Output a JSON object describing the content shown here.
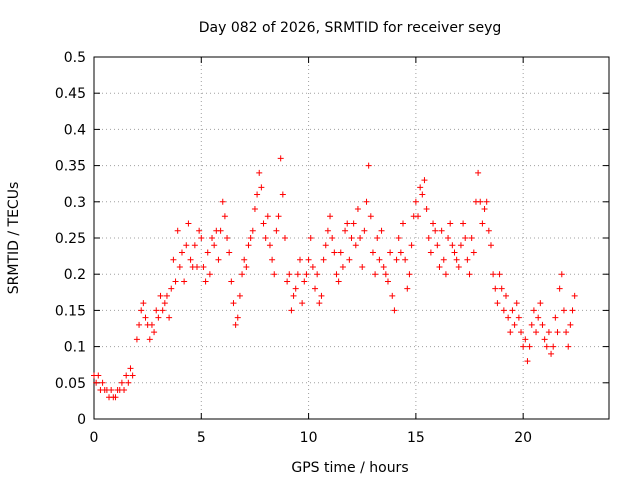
{
  "chart_data": {
    "type": "scatter",
    "title": "Day 082 of 2026, SRMTID for receiver seyg",
    "xlabel": "GPS time / hours",
    "ylabel": "SRMTID / TECUs",
    "xlim": [
      0,
      24
    ],
    "ylim": [
      0,
      0.5
    ],
    "xticks": [
      0,
      5,
      10,
      15,
      20
    ],
    "xtick_labels": [
      "0",
      "5",
      "10",
      "15",
      "20"
    ],
    "yticks": [
      0,
      0.05,
      0.1,
      0.15,
      0.2,
      0.25,
      0.3,
      0.35,
      0.4,
      0.45,
      0.5
    ],
    "ytick_labels": [
      "0",
      "0.05",
      "0.1",
      "0.15",
      "0.2",
      "0.25",
      "0.3",
      "0.35",
      "0.4",
      "0.45",
      "0.5"
    ],
    "grid": true,
    "marker": "+",
    "marker_color": "#ff0000",
    "series": [
      {
        "name": "SRMTID",
        "points": [
          [
            0.0,
            0.06
          ],
          [
            0.1,
            0.05
          ],
          [
            0.2,
            0.06
          ],
          [
            0.3,
            0.04
          ],
          [
            0.4,
            0.05
          ],
          [
            0.5,
            0.04
          ],
          [
            0.6,
            0.04
          ],
          [
            0.7,
            0.03
          ],
          [
            0.8,
            0.04
          ],
          [
            0.9,
            0.03
          ],
          [
            1.0,
            0.03
          ],
          [
            1.1,
            0.04
          ],
          [
            1.2,
            0.04
          ],
          [
            1.3,
            0.05
          ],
          [
            1.4,
            0.04
          ],
          [
            1.5,
            0.06
          ],
          [
            1.6,
            0.05
          ],
          [
            1.7,
            0.07
          ],
          [
            1.8,
            0.06
          ],
          [
            2.0,
            0.11
          ],
          [
            2.1,
            0.13
          ],
          [
            2.2,
            0.15
          ],
          [
            2.3,
            0.16
          ],
          [
            2.4,
            0.14
          ],
          [
            2.5,
            0.13
          ],
          [
            2.6,
            0.11
          ],
          [
            2.7,
            0.13
          ],
          [
            2.8,
            0.12
          ],
          [
            2.9,
            0.15
          ],
          [
            3.0,
            0.14
          ],
          [
            3.1,
            0.17
          ],
          [
            3.2,
            0.15
          ],
          [
            3.3,
            0.16
          ],
          [
            3.4,
            0.17
          ],
          [
            3.5,
            0.14
          ],
          [
            3.6,
            0.18
          ],
          [
            3.7,
            0.22
          ],
          [
            3.8,
            0.19
          ],
          [
            3.9,
            0.26
          ],
          [
            4.0,
            0.21
          ],
          [
            4.1,
            0.23
          ],
          [
            4.2,
            0.19
          ],
          [
            4.3,
            0.24
          ],
          [
            4.4,
            0.27
          ],
          [
            4.5,
            0.22
          ],
          [
            4.6,
            0.21
          ],
          [
            4.7,
            0.24
          ],
          [
            4.8,
            0.21
          ],
          [
            4.9,
            0.26
          ],
          [
            5.0,
            0.25
          ],
          [
            5.1,
            0.21
          ],
          [
            5.2,
            0.19
          ],
          [
            5.3,
            0.23
          ],
          [
            5.4,
            0.2
          ],
          [
            5.5,
            0.25
          ],
          [
            5.6,
            0.24
          ],
          [
            5.7,
            0.26
          ],
          [
            5.8,
            0.22
          ],
          [
            5.9,
            0.26
          ],
          [
            6.0,
            0.3
          ],
          [
            6.1,
            0.28
          ],
          [
            6.2,
            0.25
          ],
          [
            6.3,
            0.23
          ],
          [
            6.4,
            0.19
          ],
          [
            6.5,
            0.16
          ],
          [
            6.6,
            0.13
          ],
          [
            6.7,
            0.14
          ],
          [
            6.8,
            0.17
          ],
          [
            6.9,
            0.2
          ],
          [
            7.0,
            0.22
          ],
          [
            7.1,
            0.21
          ],
          [
            7.2,
            0.24
          ],
          [
            7.3,
            0.25
          ],
          [
            7.4,
            0.26
          ],
          [
            7.5,
            0.29
          ],
          [
            7.6,
            0.31
          ],
          [
            7.7,
            0.34
          ],
          [
            7.8,
            0.32
          ],
          [
            7.9,
            0.27
          ],
          [
            8.0,
            0.25
          ],
          [
            8.1,
            0.28
          ],
          [
            8.2,
            0.24
          ],
          [
            8.3,
            0.22
          ],
          [
            8.4,
            0.2
          ],
          [
            8.5,
            0.26
          ],
          [
            8.6,
            0.28
          ],
          [
            8.7,
            0.36
          ],
          [
            8.8,
            0.31
          ],
          [
            8.9,
            0.25
          ],
          [
            9.0,
            0.19
          ],
          [
            9.1,
            0.2
          ],
          [
            9.2,
            0.15
          ],
          [
            9.3,
            0.17
          ],
          [
            9.4,
            0.18
          ],
          [
            9.5,
            0.2
          ],
          [
            9.6,
            0.22
          ],
          [
            9.7,
            0.16
          ],
          [
            9.8,
            0.19
          ],
          [
            9.9,
            0.2
          ],
          [
            10.0,
            0.22
          ],
          [
            10.1,
            0.25
          ],
          [
            10.2,
            0.21
          ],
          [
            10.3,
            0.18
          ],
          [
            10.4,
            0.2
          ],
          [
            10.5,
            0.16
          ],
          [
            10.6,
            0.17
          ],
          [
            10.7,
            0.22
          ],
          [
            10.8,
            0.24
          ],
          [
            10.9,
            0.26
          ],
          [
            11.0,
            0.28
          ],
          [
            11.1,
            0.25
          ],
          [
            11.2,
            0.23
          ],
          [
            11.3,
            0.2
          ],
          [
            11.4,
            0.19
          ],
          [
            11.5,
            0.23
          ],
          [
            11.6,
            0.21
          ],
          [
            11.7,
            0.26
          ],
          [
            11.8,
            0.27
          ],
          [
            11.9,
            0.22
          ],
          [
            12.0,
            0.25
          ],
          [
            12.1,
            0.27
          ],
          [
            12.2,
            0.24
          ],
          [
            12.3,
            0.29
          ],
          [
            12.4,
            0.25
          ],
          [
            12.5,
            0.21
          ],
          [
            12.6,
            0.26
          ],
          [
            12.7,
            0.3
          ],
          [
            12.8,
            0.35
          ],
          [
            12.9,
            0.28
          ],
          [
            13.0,
            0.23
          ],
          [
            13.1,
            0.2
          ],
          [
            13.2,
            0.25
          ],
          [
            13.3,
            0.22
          ],
          [
            13.4,
            0.26
          ],
          [
            13.5,
            0.21
          ],
          [
            13.6,
            0.2
          ],
          [
            13.7,
            0.19
          ],
          [
            13.8,
            0.23
          ],
          [
            13.9,
            0.17
          ],
          [
            14.0,
            0.15
          ],
          [
            14.1,
            0.22
          ],
          [
            14.2,
            0.25
          ],
          [
            14.3,
            0.23
          ],
          [
            14.4,
            0.27
          ],
          [
            14.5,
            0.22
          ],
          [
            14.6,
            0.18
          ],
          [
            14.7,
            0.2
          ],
          [
            14.8,
            0.24
          ],
          [
            14.9,
            0.28
          ],
          [
            15.0,
            0.3
          ],
          [
            15.1,
            0.28
          ],
          [
            15.2,
            0.32
          ],
          [
            15.3,
            0.31
          ],
          [
            15.4,
            0.33
          ],
          [
            15.5,
            0.29
          ],
          [
            15.6,
            0.25
          ],
          [
            15.7,
            0.23
          ],
          [
            15.8,
            0.27
          ],
          [
            15.9,
            0.26
          ],
          [
            16.0,
            0.24
          ],
          [
            16.1,
            0.21
          ],
          [
            16.2,
            0.26
          ],
          [
            16.3,
            0.22
          ],
          [
            16.4,
            0.2
          ],
          [
            16.5,
            0.25
          ],
          [
            16.6,
            0.27
          ],
          [
            16.7,
            0.24
          ],
          [
            16.8,
            0.23
          ],
          [
            16.9,
            0.22
          ],
          [
            17.0,
            0.21
          ],
          [
            17.1,
            0.24
          ],
          [
            17.2,
            0.27
          ],
          [
            17.3,
            0.25
          ],
          [
            17.4,
            0.22
          ],
          [
            17.5,
            0.2
          ],
          [
            17.6,
            0.25
          ],
          [
            17.7,
            0.23
          ],
          [
            17.8,
            0.3
          ],
          [
            17.9,
            0.34
          ],
          [
            18.0,
            0.3
          ],
          [
            18.1,
            0.27
          ],
          [
            18.2,
            0.29
          ],
          [
            18.3,
            0.3
          ],
          [
            18.4,
            0.26
          ],
          [
            18.5,
            0.24
          ],
          [
            18.6,
            0.2
          ],
          [
            18.7,
            0.18
          ],
          [
            18.8,
            0.16
          ],
          [
            18.9,
            0.2
          ],
          [
            19.0,
            0.18
          ],
          [
            19.1,
            0.15
          ],
          [
            19.2,
            0.17
          ],
          [
            19.3,
            0.14
          ],
          [
            19.4,
            0.12
          ],
          [
            19.5,
            0.15
          ],
          [
            19.6,
            0.13
          ],
          [
            19.7,
            0.16
          ],
          [
            19.8,
            0.14
          ],
          [
            19.9,
            0.12
          ],
          [
            20.0,
            0.1
          ],
          [
            20.1,
            0.11
          ],
          [
            20.2,
            0.08
          ],
          [
            20.3,
            0.1
          ],
          [
            20.4,
            0.13
          ],
          [
            20.5,
            0.15
          ],
          [
            20.6,
            0.12
          ],
          [
            20.7,
            0.14
          ],
          [
            20.8,
            0.16
          ],
          [
            20.9,
            0.13
          ],
          [
            21.0,
            0.11
          ],
          [
            21.1,
            0.1
          ],
          [
            21.2,
            0.12
          ],
          [
            21.3,
            0.09
          ],
          [
            21.4,
            0.1
          ],
          [
            21.5,
            0.14
          ],
          [
            21.6,
            0.12
          ],
          [
            21.7,
            0.18
          ],
          [
            21.8,
            0.2
          ],
          [
            21.9,
            0.15
          ],
          [
            22.0,
            0.12
          ],
          [
            22.1,
            0.1
          ],
          [
            22.2,
            0.13
          ],
          [
            22.3,
            0.15
          ],
          [
            22.4,
            0.17
          ]
        ]
      }
    ]
  }
}
